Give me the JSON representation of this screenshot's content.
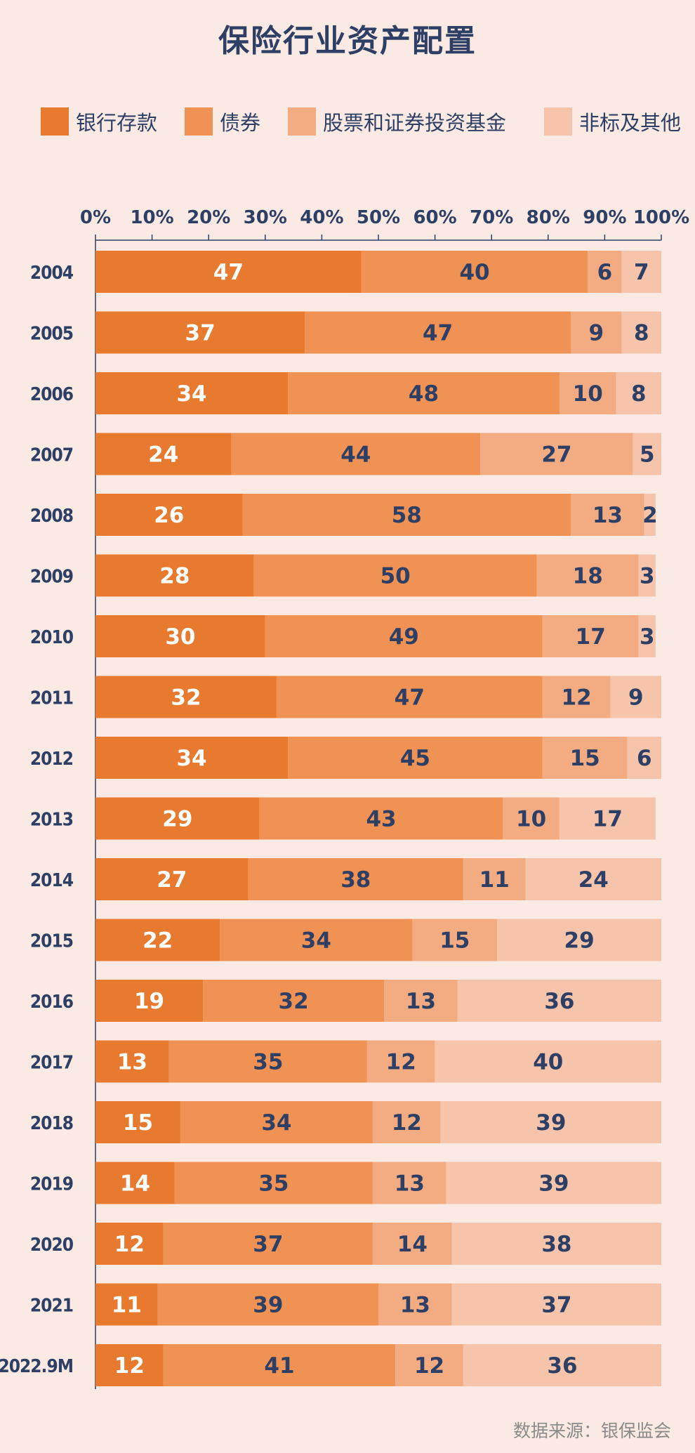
{
  "title": "保险行业资产配置",
  "legend": [
    {
      "label": "银行存款",
      "color": "#e87a2f"
    },
    {
      "label": "债券",
      "color": "#ef9253"
    },
    {
      "label": "股票和证券投资基金",
      "color": "#f3ab82"
    },
    {
      "label": "非标及其他",
      "color": "#f6c4aa"
    }
  ],
  "source": "数据来源：银保监会",
  "chart_data": {
    "type": "bar",
    "orientation": "horizontal",
    "stacked": true,
    "title": "保险行业资产配置",
    "xlim": [
      0,
      100
    ],
    "x_ticks": [
      "0%",
      "10%",
      "20%",
      "30%",
      "40%",
      "50%",
      "60%",
      "70%",
      "80%",
      "90%",
      "100%"
    ],
    "categories": [
      "2004",
      "2005",
      "2006",
      "2007",
      "2008",
      "2009",
      "2010",
      "2011",
      "2012",
      "2013",
      "2014",
      "2015",
      "2016",
      "2017",
      "2018",
      "2019",
      "2020",
      "2021",
      "2022.9M"
    ],
    "series": [
      {
        "name": "银行存款",
        "color": "#e87a2f",
        "values": [
          47,
          37,
          34,
          24,
          26,
          28,
          30,
          32,
          34,
          29,
          27,
          22,
          19,
          13,
          15,
          14,
          12,
          11,
          12
        ]
      },
      {
        "name": "债券",
        "color": "#ef9253",
        "values": [
          40,
          47,
          48,
          44,
          58,
          50,
          49,
          47,
          45,
          43,
          38,
          34,
          32,
          35,
          34,
          35,
          37,
          39,
          41
        ]
      },
      {
        "name": "股票和证券投资基金",
        "color": "#f3ab82",
        "values": [
          6,
          9,
          10,
          27,
          13,
          18,
          17,
          12,
          15,
          10,
          11,
          15,
          13,
          12,
          12,
          13,
          14,
          13,
          12
        ]
      },
      {
        "name": "非标及其他",
        "color": "#f6c4aa",
        "values": [
          7,
          8,
          8,
          5,
          2,
          3,
          3,
          9,
          6,
          17,
          24,
          29,
          36,
          40,
          39,
          39,
          38,
          37,
          36
        ]
      }
    ],
    "grid": false,
    "legend_position": "top"
  }
}
